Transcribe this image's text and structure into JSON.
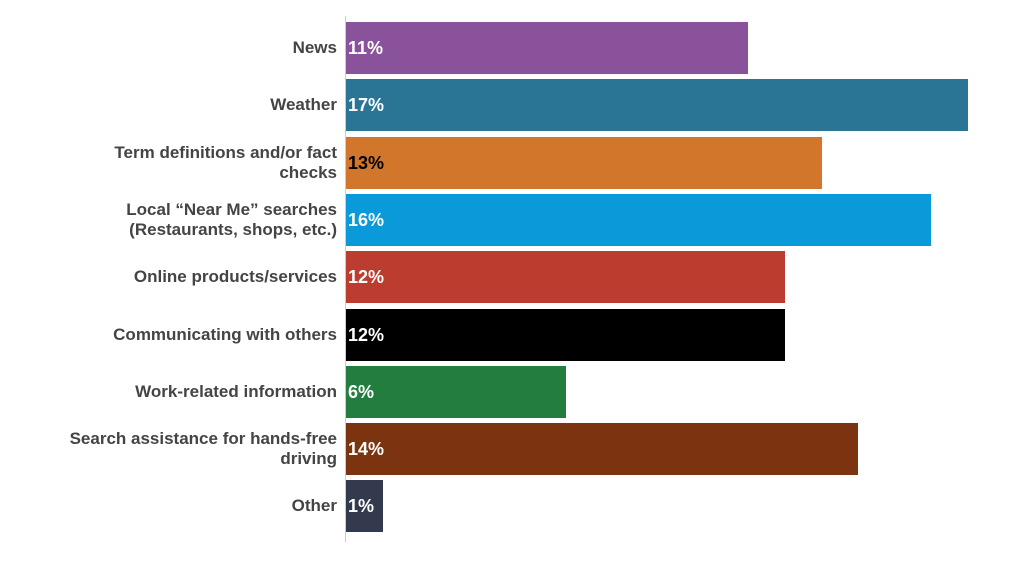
{
  "chart_data": {
    "type": "bar",
    "orientation": "horizontal",
    "categories": [
      "News",
      "Weather",
      "Term definitions and/or fact checks",
      "Local “Near Me” searches (Restaurants, shops, etc.)",
      "Online products/services",
      "Communicating with others",
      "Work-related information",
      "Search assistance for hands-free driving",
      "Other"
    ],
    "values": [
      11,
      17,
      13,
      16,
      12,
      12,
      6,
      14,
      1
    ],
    "value_labels": [
      "11%",
      "17%",
      "13%",
      "16%",
      "12%",
      "12%",
      "6%",
      "14%",
      "1%"
    ],
    "colors": [
      "#8a529b",
      "#2a7596",
      "#d2762b",
      "#0a9ad9",
      "#bd3c30",
      "#000000",
      "#237d3f",
      "#7c3410",
      "#343a4e"
    ],
    "value_label_colors": [
      "#ffffff",
      "#ffffff",
      "#000000",
      "#ffffff",
      "#ffffff",
      "#ffffff",
      "#ffffff",
      "#ffffff",
      "#ffffff"
    ]
  }
}
